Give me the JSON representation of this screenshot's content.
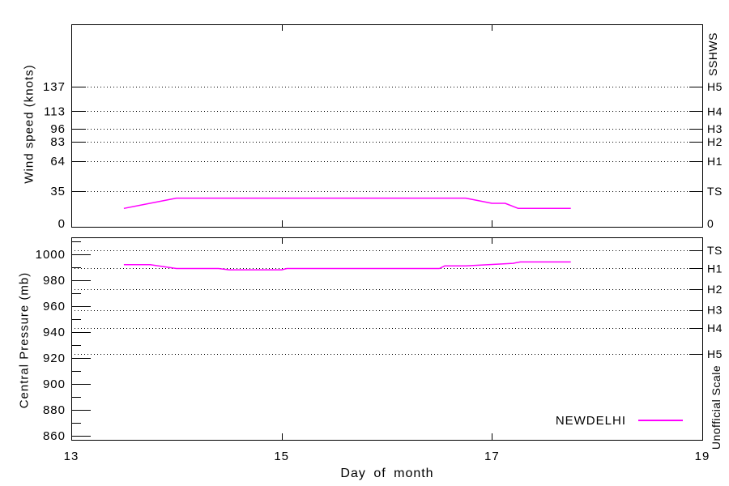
{
  "labels": {
    "x_axis_title": "Day of month",
    "wind_axis_title": "Wind speed (knots)",
    "pressure_axis_title": "Central Pressure (mb)",
    "sshws_label": "SSHWS",
    "unofficial_scale_label": "Unofficial Scale",
    "legend_label": "NEWDELHI"
  },
  "colors": {
    "series_line": "#ff00ff",
    "axis": "#000000",
    "grid": "#000000",
    "background": "#ffffff",
    "text": "#000000"
  },
  "chart_data": [
    {
      "id": "wind",
      "type": "line",
      "title": "",
      "xlabel": "Day of month",
      "ylabel": "Wind speed (knots)",
      "right_axis_title": "SSHWS",
      "xlim": [
        13,
        19
      ],
      "ylim": [
        0,
        198
      ],
      "xticks_labeled": [
        13,
        15,
        17,
        19
      ],
      "xticks_inner": [
        15,
        17
      ],
      "grid": "dotted-horizontal",
      "legend_position": "none",
      "yticks": [
        {
          "value": 0,
          "left": "0",
          "right": "0",
          "grid": false
        },
        {
          "value": 35,
          "left": "35",
          "right": "TS",
          "grid": true
        },
        {
          "value": 64,
          "left": "64",
          "right": "H1",
          "grid": true
        },
        {
          "value": 83,
          "left": "83",
          "right": "H2",
          "grid": true
        },
        {
          "value": 96,
          "left": "96",
          "right": "H3",
          "grid": true
        },
        {
          "value": 113,
          "left": "113",
          "right": "H4",
          "grid": true
        },
        {
          "value": 137,
          "left": "137",
          "right": "H5",
          "grid": true
        }
      ],
      "series": [
        {
          "name": "NEWDELHI",
          "color": "#ff00ff",
          "points": [
            [
              13.5,
              18
            ],
            [
              14.0,
              28
            ],
            [
              16.75,
              28
            ],
            [
              17.0,
              23
            ],
            [
              17.125,
              23
            ],
            [
              17.25,
              18
            ],
            [
              17.75,
              18
            ]
          ]
        }
      ]
    },
    {
      "id": "pressure",
      "type": "line",
      "title": "",
      "xlabel": "Day of month",
      "ylabel": "Central Pressure (mb)",
      "right_axis_title": "Unofficial Scale",
      "xlim": [
        13,
        19
      ],
      "ylim": [
        857,
        1013
      ],
      "xticks_labeled": [
        13,
        15,
        17,
        19
      ],
      "xticks_inner": [
        15,
        17
      ],
      "grid": "dotted-horizontal",
      "legend_position": "inside-bottom-right",
      "left_major_ticks": [
        860,
        880,
        900,
        920,
        940,
        960,
        980,
        1000
      ],
      "left_minor_ticks": [
        870,
        890,
        910,
        930,
        950,
        970,
        990,
        1010
      ],
      "right_ticks": [
        {
          "value": 1003,
          "label": "TS"
        },
        {
          "value": 989,
          "label": "H1"
        },
        {
          "value": 973,
          "label": "H2"
        },
        {
          "value": 957,
          "label": "H3"
        },
        {
          "value": 943,
          "label": "H4"
        },
        {
          "value": 923,
          "label": "H5"
        }
      ],
      "series": [
        {
          "name": "NEWDELHI",
          "color": "#ff00ff",
          "points": [
            [
              13.5,
              992
            ],
            [
              13.75,
              992
            ],
            [
              14.0,
              989
            ],
            [
              14.4,
              989
            ],
            [
              14.5,
              988
            ],
            [
              15.0,
              988
            ],
            [
              15.05,
              989
            ],
            [
              16.5,
              989
            ],
            [
              16.55,
              991
            ],
            [
              16.75,
              991
            ],
            [
              17.2,
              993
            ],
            [
              17.27,
              994
            ],
            [
              17.75,
              994
            ]
          ]
        }
      ]
    }
  ]
}
